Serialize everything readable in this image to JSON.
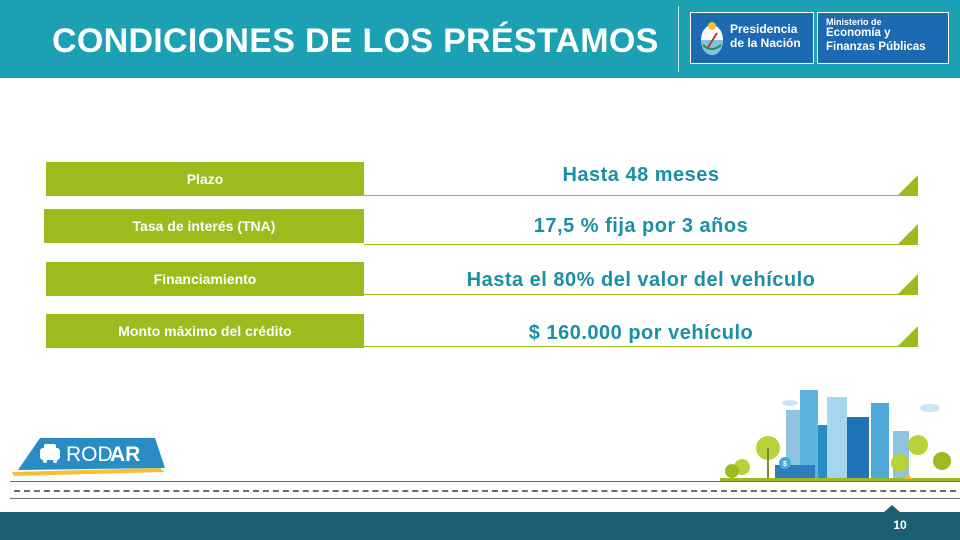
{
  "header": {
    "title": "CONDICIONES DE LOS PRÉSTAMOS",
    "logo_presidencia": {
      "line1": "Presidencia",
      "line2": "de la Nación"
    },
    "logo_ministerio": {
      "line1": "Ministerio de",
      "line2": "Economía y",
      "line3": "Finanzas Públicas"
    }
  },
  "rows": [
    {
      "label": "Plazo",
      "value": "Hasta 48 meses"
    },
    {
      "label": "Tasa de interés (TNA)",
      "value": "17,5 % fija por 3 años"
    },
    {
      "label": "Financiamiento",
      "value": "Hasta el 80% del valor del vehículo"
    },
    {
      "label": "Monto máximo del crédito",
      "value": "$ 160.000 por vehículo"
    }
  ],
  "brand": {
    "prefix": "ROD",
    "suffix": "AR"
  },
  "footer": {
    "page_number": "10"
  },
  "colors": {
    "header": "#1ba1b3",
    "accent_green": "#9cbc1e",
    "value_text": "#1a8fa5",
    "footer": "#1c5e73",
    "logo_blue": "#1d6ab2"
  }
}
